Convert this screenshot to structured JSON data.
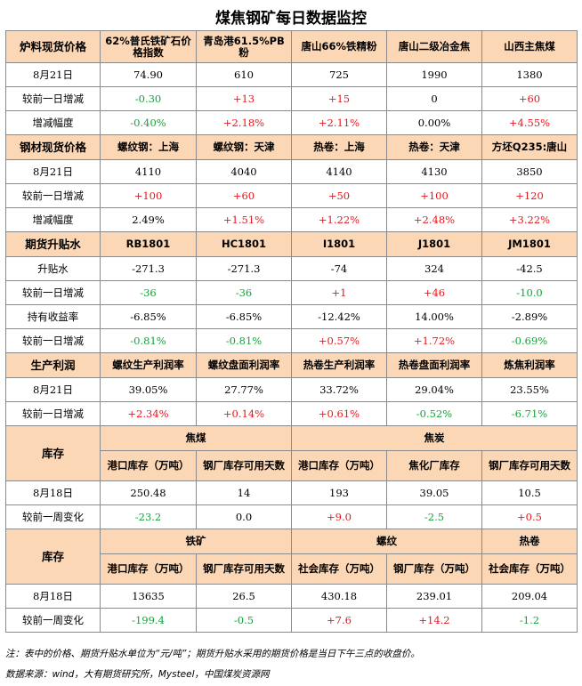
{
  "title": "煤焦钢矿每日数据监控",
  "sections": {
    "raw": {
      "headers": [
        "炉料现货价格",
        "62%普氏铁矿石价格指数",
        "青岛港61.5%PB粉",
        "唐山66%铁精粉",
        "唐山二级冶金焦",
        "山西主焦煤"
      ],
      "rows": [
        {
          "label": "8月21日",
          "cells": [
            "74.90",
            "610",
            "725",
            "1990",
            "1380"
          ]
        },
        {
          "label": "较前一日增减",
          "cells": [
            "-0.30",
            "+13",
            "+15",
            "0",
            "+60"
          ]
        },
        {
          "label": "增减幅度",
          "cells": [
            "-0.40%",
            "+2.18%",
            "+2.11%",
            "0.00%",
            "+4.55%"
          ]
        }
      ]
    },
    "steel": {
      "headers": [
        "钢材现货价格",
        "螺纹钢：上海",
        "螺纹钢：天津",
        "热卷：上海",
        "热卷：天津",
        "方坯Q235:唐山"
      ],
      "rows": [
        {
          "label": "8月21日",
          "cells": [
            "4110",
            "4040",
            "4140",
            "4130",
            "3850"
          ]
        },
        {
          "label": "较前一日增减",
          "cells": [
            "+100",
            "+60",
            "+50",
            "+100",
            "+120"
          ]
        },
        {
          "label": "增减幅度",
          "cells": [
            "2.49%",
            "+1.51%",
            "+1.22%",
            "+2.48%",
            "+3.22%"
          ]
        }
      ]
    },
    "futures": {
      "headers": [
        "期货升贴水",
        "RB1801",
        "HC1801",
        "I1801",
        "J1801",
        "JM1801"
      ],
      "rows": [
        {
          "label": "升贴水",
          "cells": [
            "-271.3",
            "-271.3",
            "-74",
            "324",
            "-42.5"
          ]
        },
        {
          "label": "较前一日增减",
          "cells": [
            "-36",
            "-36",
            "+1",
            "+46",
            "-10.0"
          ]
        },
        {
          "label": "持有收益率",
          "cells": [
            "-6.85%",
            "-6.85%",
            "-12.42%",
            "14.00%",
            "-2.89%"
          ]
        },
        {
          "label": "较前一日增减",
          "cells": [
            "-0.81%",
            "-0.81%",
            "+0.57%",
            "+1.72%",
            "-0.69%"
          ]
        }
      ]
    },
    "profit": {
      "headers": [
        "生产利润",
        "螺纹生产利润率",
        "螺纹盘面利润率",
        "热卷生产利润率",
        "热卷盘面利润率",
        "炼焦利润率"
      ],
      "rows": [
        {
          "label": "8月21日",
          "cells": [
            "39.05%",
            "27.77%",
            "33.72%",
            "29.04%",
            "23.55%"
          ]
        },
        {
          "label": "较前一日增减",
          "cells": [
            "+2.34%",
            "+0.14%",
            "+0.61%",
            "-0.52%",
            "-6.71%"
          ]
        }
      ]
    },
    "inv1": {
      "label": "库存",
      "group_a": "焦煤",
      "group_b": "焦炭",
      "subheaders": [
        "港口库存（万吨）",
        "钢厂库存可用天数",
        "港口库存（万吨）",
        "焦化厂库存",
        "钢厂库存可用天数"
      ],
      "rows": [
        {
          "label": "8月18日",
          "cells": [
            "250.48",
            "14",
            "193",
            "39.05",
            "10.5"
          ]
        },
        {
          "label": "较前一周变化",
          "cells": [
            "-23.2",
            "0.0",
            "+9.0",
            "-2.5",
            "+0.5"
          ]
        }
      ]
    },
    "inv2": {
      "label": "库存",
      "group_a": "铁矿",
      "group_b": "螺纹",
      "group_c": "热卷",
      "subheaders": [
        "港口库存（万吨）",
        "钢厂库存可用天数",
        "社会库存（万吨）",
        "钢厂库存（万吨）",
        "社会库存（万吨）"
      ],
      "rows": [
        {
          "label": "8月18日",
          "cells": [
            "13635",
            "26.5",
            "430.18",
            "239.01",
            "209.04"
          ]
        },
        {
          "label": "较前一周变化",
          "cells": [
            "-199.4",
            "-0.5",
            "+7.6",
            "+14.2",
            "-1.2"
          ]
        }
      ]
    }
  },
  "footnote": "注：表中的价格、期货升贴水单位为“元/吨”；期货升贴水采用的期货价格是当日下午三点的收盘价。",
  "source": "数据来源：wind，大有期货研究所，Mysteel，中国煤炭资源网",
  "colors": {
    "header_bg": "#fbd7b6",
    "positive": "#e8151c",
    "negative": "#12a43a"
  }
}
